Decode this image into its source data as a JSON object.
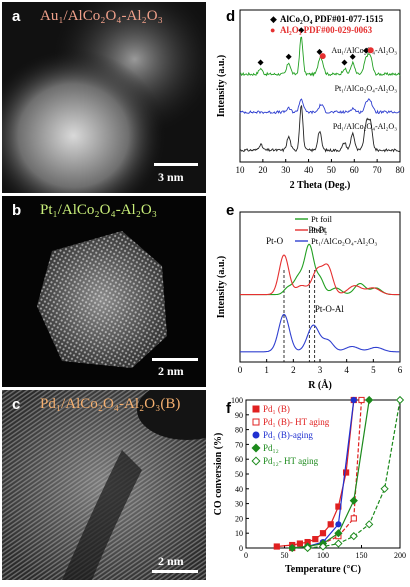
{
  "panels": {
    "a": {
      "letter": "a",
      "title": "Au₁/AlCo₂O₄-Al₂O₃",
      "title_color": "#f0a08a",
      "scale": "3 nm"
    },
    "b": {
      "letter": "b",
      "title": "Pt₁/AlCo₂O₄-Al₂O₃",
      "title_color": "#c9ef7a",
      "scale": "2 nm"
    },
    "c": {
      "letter": "c",
      "title": "Pd₁/AlCo₂O₄-Al₂O₃(B)",
      "title_color": "#f5b070",
      "scale": "2 nm"
    },
    "d": {
      "letter": "d"
    },
    "e": {
      "letter": "e"
    },
    "f": {
      "letter": "f"
    }
  },
  "chart_data": [
    {
      "id": "d",
      "type": "line",
      "xlabel": "2 Theta (Deg.)",
      "ylabel": "Intensity (a.u.)",
      "xlim": [
        10,
        80
      ],
      "xticks": [
        10,
        20,
        30,
        40,
        50,
        60,
        70,
        80
      ],
      "legend": [
        {
          "marker": "◆",
          "text": "AlCo₂O₄ PDF#01-077-1515",
          "color": "#000000"
        },
        {
          "marker": "●",
          "text": "Al₂O₃ PDF#00-029-0063",
          "color": "#e53030"
        }
      ],
      "series": [
        {
          "name": "Au₁/AlCo₂O₄-Al₂O₃",
          "color": "#22a022",
          "offset": 2.0,
          "peaks": [
            [
              19,
              0.15,
              0.8
            ],
            [
              31.3,
              0.3,
              0.8
            ],
            [
              36.8,
              1.0,
              0.7
            ],
            [
              44.8,
              0.35,
              0.8
            ],
            [
              46,
              0.25,
              0.8
            ],
            [
              55.7,
              0.15,
              0.8
            ],
            [
              59.3,
              0.3,
              0.8
            ],
            [
              65.2,
              0.4,
              0.9
            ],
            [
              67,
              0.45,
              0.9
            ]
          ]
        },
        {
          "name": "Pt₁/AlCo₂O₄-Al₂O₃",
          "color": "#3040d0",
          "offset": 1.0,
          "peaks": [
            [
              31.3,
              0.1,
              0.9
            ],
            [
              36.8,
              0.35,
              0.9
            ],
            [
              45.5,
              0.2,
              1.0
            ],
            [
              59.3,
              0.1,
              1.0
            ],
            [
              65.5,
              0.22,
              1.0
            ],
            [
              67,
              0.25,
              1.0
            ]
          ]
        },
        {
          "name": "Pd₁/AlCo₂O₄-Al₂O₃",
          "color": "#222222",
          "offset": 0.0,
          "peaks": [
            [
              19,
              0.15,
              0.8
            ],
            [
              31.3,
              0.35,
              0.8
            ],
            [
              36.8,
              1.2,
              0.7
            ],
            [
              44.8,
              0.5,
              0.8
            ],
            [
              55.7,
              0.2,
              0.8
            ],
            [
              59.3,
              0.45,
              0.8
            ],
            [
              65.2,
              0.65,
              0.9
            ],
            [
              67,
              0.7,
              0.9
            ]
          ]
        }
      ],
      "markers": [
        {
          "series": 0,
          "x": 19,
          "symbol": "diamond",
          "color": "#000000"
        },
        {
          "series": 0,
          "x": 31.3,
          "symbol": "diamond",
          "color": "#000000"
        },
        {
          "series": 0,
          "x": 36.8,
          "symbol": "diamond",
          "color": "#000000"
        },
        {
          "series": 0,
          "x": 44.8,
          "symbol": "diamond",
          "color": "#000000"
        },
        {
          "series": 0,
          "x": 46.2,
          "symbol": "circle",
          "color": "#e53030"
        },
        {
          "series": 0,
          "x": 55.7,
          "symbol": "diamond",
          "color": "#000000"
        },
        {
          "series": 0,
          "x": 59.3,
          "symbol": "diamond",
          "color": "#000000"
        },
        {
          "series": 0,
          "x": 65.2,
          "symbol": "diamond",
          "color": "#000000"
        },
        {
          "series": 0,
          "x": 67.2,
          "symbol": "circle",
          "color": "#e53030"
        }
      ]
    },
    {
      "id": "e",
      "type": "line",
      "xlabel": "R (Å)",
      "ylabel": "Intensity (a.u.)",
      "xlim": [
        0,
        6
      ],
      "xticks": [
        0,
        1,
        2,
        3,
        4,
        5,
        6
      ],
      "legend": [
        {
          "text": "Pt foil",
          "color": "#22a022"
        },
        {
          "text": "PtO₂",
          "color": "#e53030"
        },
        {
          "text": "Pt₁/AlCo₂O₄-Al₂O₃",
          "color": "#3040d0"
        }
      ],
      "annotations": [
        "Pt-O",
        "Pt-Pt",
        "Pt-O-Al"
      ],
      "dashed_x": [
        1.65,
        2.6,
        2.8
      ],
      "series": [
        {
          "name": "Pt foil",
          "color": "#22a022",
          "offset": 1.3,
          "peaks": [
            [
              1.8,
              0.15,
              0.15
            ],
            [
              2.2,
              0.4,
              0.18
            ],
            [
              2.6,
              1.1,
              0.17
            ],
            [
              3.0,
              0.35,
              0.15
            ],
            [
              3.6,
              0.15,
              0.2
            ],
            [
              4.5,
              0.25,
              0.2
            ],
            [
              5.1,
              0.15,
              0.2
            ]
          ]
        },
        {
          "name": "PtO₂",
          "color": "#e53030",
          "offset": 1.3,
          "peaks": [
            [
              1.65,
              0.9,
              0.18
            ],
            [
              2.3,
              0.2,
              0.2
            ],
            [
              2.9,
              0.55,
              0.2
            ],
            [
              3.3,
              0.6,
              0.18
            ],
            [
              4.3,
              0.2,
              0.25
            ],
            [
              5.0,
              0.15,
              0.25
            ]
          ]
        },
        {
          "name": "Pt₁/AlCo₂O₄-Al₂O₃",
          "color": "#3040d0",
          "offset": 0.0,
          "peaks": [
            [
              1.65,
              0.85,
              0.2
            ],
            [
              2.75,
              0.6,
              0.22
            ],
            [
              3.3,
              0.25,
              0.2
            ],
            [
              4.2,
              0.12,
              0.25
            ],
            [
              5.1,
              0.1,
              0.25
            ]
          ]
        }
      ]
    },
    {
      "id": "f",
      "type": "scatter",
      "xlabel": "Temperature (°C)",
      "ylabel": "CO conversion (%)",
      "xlim": [
        0,
        200
      ],
      "ylim": [
        0,
        100
      ],
      "xticks": [
        0,
        50,
        100,
        150,
        200
      ],
      "yticks": [
        0,
        10,
        20,
        30,
        40,
        50,
        60,
        70,
        80,
        90,
        100
      ],
      "series": [
        {
          "name": "Pd₁ (B)",
          "color": "#e02020",
          "marker": "square",
          "filled": true,
          "dash": false,
          "x": [
            40,
            60,
            70,
            80,
            90,
            100,
            110,
            120,
            130,
            140
          ],
          "y": [
            1,
            2,
            3,
            4,
            6,
            10,
            16,
            28,
            51,
            100
          ]
        },
        {
          "name": "Pd₁ (B)- HT aging",
          "color": "#e02020",
          "marker": "square",
          "filled": false,
          "dash": true,
          "x": [
            60,
            80,
            100,
            120,
            140,
            150
          ],
          "y": [
            0,
            1,
            3,
            8,
            20,
            100
          ]
        },
        {
          "name": "Pd₁ (B)-aging",
          "color": "#2030d0",
          "marker": "circle",
          "filled": true,
          "dash": false,
          "x": [
            60,
            80,
            100,
            120,
            140
          ],
          "y": [
            0,
            1,
            4,
            16,
            100
          ]
        },
        {
          "name": "Pd₁₂",
          "color": "#1c8a1c",
          "marker": "diamond",
          "filled": true,
          "dash": false,
          "x": [
            60,
            80,
            100,
            120,
            140,
            160
          ],
          "y": [
            0,
            1,
            3,
            10,
            32,
            100
          ]
        },
        {
          "name": "Pd₁₂- HT aging",
          "color": "#1c8a1c",
          "marker": "diamond",
          "filled": false,
          "dash": true,
          "x": [
            80,
            100,
            120,
            140,
            160,
            180,
            200
          ],
          "y": [
            0,
            1,
            3,
            8,
            16,
            40,
            100
          ]
        }
      ]
    }
  ]
}
